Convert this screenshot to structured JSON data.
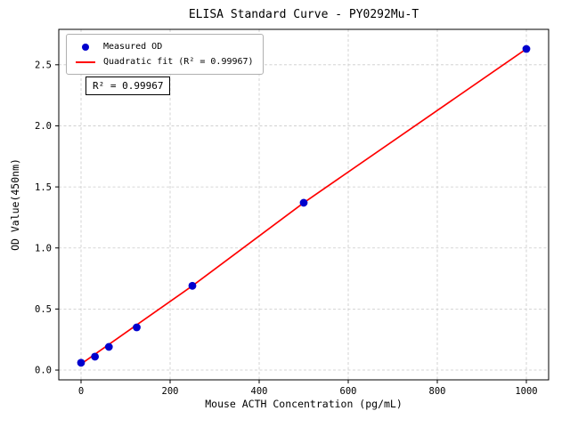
{
  "chart_data": {
    "type": "scatter",
    "title": "ELISA Standard Curve - PY0292Mu-T",
    "xlabel": "Mouse ACTH Concentration (pg/mL)",
    "ylabel": "OD Value(450nm)",
    "xlim": [
      -50,
      1050
    ],
    "ylim": [
      -0.08,
      2.79
    ],
    "grid": true,
    "grid_style": "dashed",
    "legend_position": "upper left",
    "annotation": "R² = 0.99967",
    "x_ticks": [
      {
        "value": 0,
        "label": "0"
      },
      {
        "value": 200,
        "label": "200"
      },
      {
        "value": 400,
        "label": "400"
      },
      {
        "value": 600,
        "label": "600"
      },
      {
        "value": 800,
        "label": "800"
      },
      {
        "value": 1000,
        "label": "1000"
      }
    ],
    "y_ticks": [
      {
        "value": 0.0,
        "label": "0.0"
      },
      {
        "value": 0.5,
        "label": "0.5"
      },
      {
        "value": 1.0,
        "label": "1.0"
      },
      {
        "value": 1.5,
        "label": "1.5"
      },
      {
        "value": 2.0,
        "label": "2.0"
      },
      {
        "value": 2.5,
        "label": "2.5"
      }
    ],
    "series": [
      {
        "name": "Measured OD",
        "kind": "scatter",
        "color": "#0000cd",
        "marker": "circle",
        "x": [
          0,
          31.25,
          62.5,
          125,
          250,
          500,
          1000
        ],
        "y": [
          0.06,
          0.11,
          0.19,
          0.35,
          0.69,
          1.37,
          2.63
        ]
      },
      {
        "name": "Quadratic fit (R² = 0.99967)",
        "kind": "line",
        "color": "#ff0000",
        "x": [
          0,
          31.25,
          62.5,
          125,
          250,
          500,
          1000
        ],
        "y": [
          0.05,
          0.13,
          0.21,
          0.37,
          0.69,
          1.37,
          2.63
        ]
      }
    ]
  }
}
